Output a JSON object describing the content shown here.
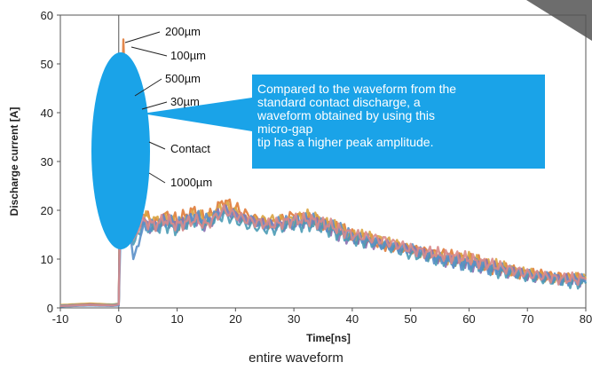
{
  "chart_data": {
    "type": "line",
    "xlabel": "Time[ns]",
    "ylabel": "Discharge current [A]",
    "xlim": [
      -10,
      80
    ],
    "ylim": [
      0,
      60
    ],
    "x_ticks": [
      -10,
      0,
      10,
      20,
      30,
      40,
      50,
      60,
      70,
      80
    ],
    "y_ticks": [
      0,
      10,
      20,
      30,
      40,
      50,
      60
    ],
    "grid": false,
    "series": [
      {
        "name": "200µm",
        "color": "#e07b39",
        "points": [
          [
            -10,
            0.5
          ],
          [
            -5,
            0.8
          ],
          [
            -1,
            0.6
          ],
          [
            0,
            0.8
          ],
          [
            0.3,
            30
          ],
          [
            0.8,
            55
          ],
          [
            1.5,
            30
          ],
          [
            2.5,
            15
          ],
          [
            4,
            20
          ],
          [
            6,
            17
          ],
          [
            8,
            19
          ],
          [
            10,
            18
          ],
          [
            13,
            20
          ],
          [
            15,
            18
          ],
          [
            18,
            22
          ],
          [
            22,
            19
          ],
          [
            26,
            17
          ],
          [
            30,
            19
          ],
          [
            33,
            18
          ],
          [
            36,
            17
          ],
          [
            40,
            15
          ],
          [
            45,
            13
          ],
          [
            50,
            12
          ],
          [
            55,
            11
          ],
          [
            60,
            10
          ],
          [
            65,
            8
          ],
          [
            70,
            7
          ],
          [
            75,
            6.5
          ],
          [
            80,
            6
          ]
        ]
      },
      {
        "name": "100µm",
        "color": "#d9a441",
        "points": [
          [
            -10,
            0.6
          ],
          [
            -5,
            0.9
          ],
          [
            -1,
            0.7
          ],
          [
            0,
            0.9
          ],
          [
            0.3,
            28
          ],
          [
            0.8,
            52
          ],
          [
            1.5,
            28
          ],
          [
            2.5,
            16
          ],
          [
            4,
            19
          ],
          [
            6,
            18
          ],
          [
            8,
            18
          ],
          [
            10,
            17
          ],
          [
            13,
            19
          ],
          [
            15,
            18
          ],
          [
            18,
            21
          ],
          [
            22,
            18
          ],
          [
            26,
            18
          ],
          [
            30,
            18
          ],
          [
            33,
            19
          ],
          [
            36,
            17
          ],
          [
            40,
            15
          ],
          [
            45,
            14
          ],
          [
            50,
            12
          ],
          [
            55,
            10
          ],
          [
            60,
            10
          ],
          [
            65,
            8.5
          ],
          [
            70,
            7
          ],
          [
            75,
            6
          ],
          [
            80,
            6
          ]
        ]
      },
      {
        "name": "500µm",
        "color": "#8a6fb0",
        "points": [
          [
            -10,
            0.4
          ],
          [
            -5,
            0.7
          ],
          [
            -1,
            0.5
          ],
          [
            0,
            0.7
          ],
          [
            0.3,
            27
          ],
          [
            0.8,
            51
          ],
          [
            1.5,
            27
          ],
          [
            2.5,
            14
          ],
          [
            4,
            18
          ],
          [
            6,
            16
          ],
          [
            8,
            18
          ],
          [
            10,
            17
          ],
          [
            13,
            18
          ],
          [
            15,
            17
          ],
          [
            18,
            20
          ],
          [
            22,
            18
          ],
          [
            26,
            17
          ],
          [
            30,
            17
          ],
          [
            33,
            18
          ],
          [
            36,
            16
          ],
          [
            40,
            14
          ],
          [
            45,
            13
          ],
          [
            50,
            12
          ],
          [
            55,
            10
          ],
          [
            60,
            9
          ],
          [
            65,
            8
          ],
          [
            70,
            6.5
          ],
          [
            75,
            6
          ],
          [
            80,
            5.5
          ]
        ]
      },
      {
        "name": "30µm",
        "color": "#4a9bb5",
        "points": [
          [
            -10,
            0.5
          ],
          [
            -5,
            0.6
          ],
          [
            -1,
            0.6
          ],
          [
            0,
            0.8
          ],
          [
            0.3,
            25
          ],
          [
            0.8,
            48
          ],
          [
            1.5,
            26
          ],
          [
            2.5,
            13
          ],
          [
            4,
            17
          ],
          [
            6,
            16
          ],
          [
            8,
            17
          ],
          [
            10,
            16
          ],
          [
            13,
            18
          ],
          [
            15,
            17
          ],
          [
            18,
            19
          ],
          [
            22,
            17
          ],
          [
            26,
            16
          ],
          [
            30,
            17
          ],
          [
            33,
            17
          ],
          [
            36,
            16
          ],
          [
            40,
            14
          ],
          [
            45,
            13
          ],
          [
            50,
            11
          ],
          [
            55,
            10
          ],
          [
            60,
            9
          ],
          [
            65,
            7.5
          ],
          [
            70,
            6.5
          ],
          [
            75,
            5.5
          ],
          [
            80,
            5
          ]
        ]
      },
      {
        "name": "Contact",
        "color": "#5a8fc8",
        "points": [
          [
            -10,
            0.3
          ],
          [
            -5,
            0.5
          ],
          [
            -1,
            0.4
          ],
          [
            0,
            0.5
          ],
          [
            0.3,
            15
          ],
          [
            0.8,
            33
          ],
          [
            1.5,
            20
          ],
          [
            2.5,
            10
          ],
          [
            4,
            16
          ],
          [
            6,
            17
          ],
          [
            8,
            18
          ],
          [
            10,
            17
          ],
          [
            13,
            19
          ],
          [
            15,
            18
          ],
          [
            18,
            20
          ],
          [
            22,
            18
          ],
          [
            26,
            17
          ],
          [
            30,
            18
          ],
          [
            33,
            18
          ],
          [
            36,
            17
          ],
          [
            40,
            15
          ],
          [
            45,
            13
          ],
          [
            50,
            12
          ],
          [
            55,
            10
          ],
          [
            60,
            9
          ],
          [
            65,
            8
          ],
          [
            70,
            7
          ],
          [
            75,
            6
          ],
          [
            80,
            5.5
          ]
        ]
      },
      {
        "name": "1000µm",
        "color": "#d98a8a",
        "points": [
          [
            -10,
            0.4
          ],
          [
            -5,
            0.6
          ],
          [
            -1,
            0.5
          ],
          [
            0,
            0.7
          ],
          [
            0.3,
            24
          ],
          [
            0.8,
            45
          ],
          [
            1.5,
            24
          ],
          [
            2.5,
            14
          ],
          [
            4,
            18
          ],
          [
            6,
            17
          ],
          [
            8,
            18
          ],
          [
            10,
            17
          ],
          [
            13,
            18
          ],
          [
            15,
            17
          ],
          [
            18,
            20
          ],
          [
            22,
            18
          ],
          [
            26,
            17
          ],
          [
            30,
            18
          ],
          [
            33,
            18
          ],
          [
            36,
            17
          ],
          [
            40,
            15
          ],
          [
            45,
            14
          ],
          [
            50,
            12
          ],
          [
            55,
            11
          ],
          [
            60,
            10
          ],
          [
            65,
            8.5
          ],
          [
            70,
            7
          ],
          [
            75,
            6
          ],
          [
            80,
            5.8
          ]
        ]
      }
    ],
    "annotation": "Compared to the waveform from the\nstandard contact discharge, a\nwaveform obtained by using this\nmicro-gap\ntip has a higher peak amplitude.",
    "caption": "entire waveform"
  },
  "colors": {
    "callout": "#1aa3e8",
    "corner_tab": "#6d6d6d"
  }
}
